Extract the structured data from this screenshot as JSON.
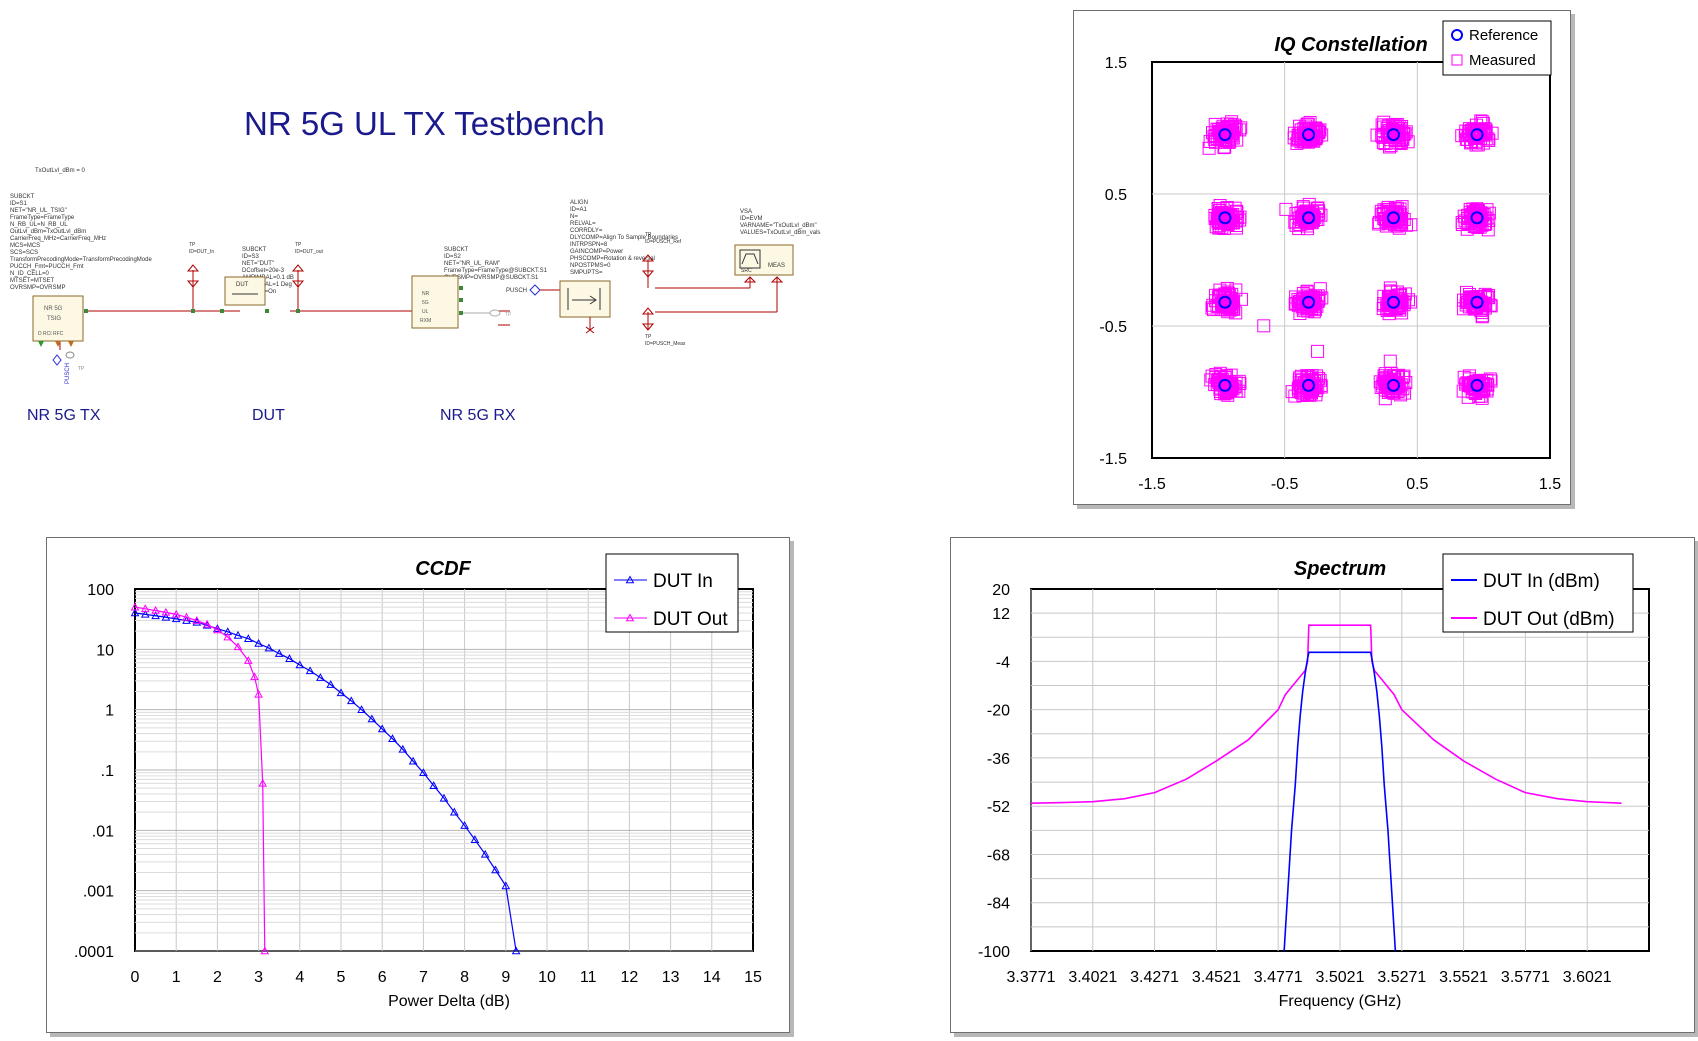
{
  "schematic": {
    "title": "NR 5G UL TX Testbench",
    "var_line": "TxOutLvl_dBm = 0",
    "blocks": [
      {
        "label": "NR 5G TX",
        "params": [
          "SUBCKT",
          "ID=S1",
          "NET=\"NR_UL_TSIG\"",
          "FrameType=FrameType",
          "N_RB_UL=N_RB_UL",
          "OutLvl_dBm=TxOutLvl_dBm",
          "CarrierFreq_MHz=CarrierFreq_MHz",
          "MCS=MCS",
          "SCS=SCS",
          "TransformPrecodingMode=TransformPrecodingMode",
          "PUCCH_Fmt=PUCCH_Fmt",
          "N_ID_CELL=0",
          "MTSET=MTSET",
          "OVRSMP=OVRSMP"
        ],
        "ports": [
          "NR",
          "5G",
          "TSIG",
          "D",
          "RCI",
          "RFC"
        ]
      },
      {
        "label": "DUT",
        "params": [
          "SUBCKT",
          "ID=S3",
          "NET=\"DUT\"",
          "DCoffset=20e-3",
          "AMPIMBAL=0.1 dB",
          "PHAIMBAL=1 Deg",
          "PhNoise=On"
        ]
      },
      {
        "label": "NR 5G RX",
        "params": [
          "SUBCKT",
          "ID=S2",
          "NET=\"NR_UL_RAM\"",
          "FrameType=FrameType@SUBCKT.S1",
          "OVRSMP=OVRSMP@SUBCKT.S1"
        ],
        "ports": [
          "NR",
          "5G",
          "UL",
          "RXM"
        ]
      }
    ],
    "align_params": [
      "ALIGN",
      "ID=A1",
      "N=",
      "RELVAL=",
      "CORRDLY=",
      "DLYCOMP=Align To Sample Boundaries",
      "INTRPSPN=8",
      "GAINCOMP=Power",
      "PHSCOMP=Rotation & reversal",
      "NPOSTPMS=0",
      "SMPUPTS="
    ],
    "vsa_params": [
      "VSA",
      "ID=EVM",
      "VARNAME=\"TxOutLvl_dBm\"",
      "VALUES=TxOutLvl_dBm_vals"
    ],
    "vsa_box": [
      "SRC",
      "MEAS"
    ],
    "testpoints": [
      "TP\nID=DUT_In",
      "TP\nID=DUT_out",
      "TP\nID=PUSCH_Ref",
      "TP\nID=PUSCH_Meas",
      "TP\nID=PUCCH_Meas",
      "TP\nID=PUSCH_Ref"
    ],
    "pusch_label": "PUSCH",
    "pusch_port": "PUSCH"
  },
  "chart_data": [
    {
      "type": "scatter",
      "title": "IQ Constellation",
      "xlim": [
        -1.5,
        1.5
      ],
      "ylim": [
        -1.5,
        1.5
      ],
      "xticks": [
        "-1.5",
        "-0.5",
        "0.5",
        "1.5"
      ],
      "yticks": [
        "1.5",
        "0.5",
        "-0.5",
        "-1.5"
      ],
      "grid": true,
      "legend_position": "top-right",
      "series": [
        {
          "name": "Reference",
          "color": "#0000ff",
          "marker": "circle",
          "points": [
            [
              -0.95,
              0.95
            ],
            [
              -0.32,
              0.95
            ],
            [
              0.32,
              0.95
            ],
            [
              0.95,
              0.95
            ],
            [
              -0.95,
              0.32
            ],
            [
              -0.32,
              0.32
            ],
            [
              0.32,
              0.32
            ],
            [
              0.95,
              0.32
            ],
            [
              -0.95,
              -0.32
            ],
            [
              -0.32,
              -0.32
            ],
            [
              0.32,
              -0.32
            ],
            [
              0.95,
              -0.32
            ],
            [
              -0.95,
              -0.95
            ],
            [
              -0.32,
              -0.95
            ],
            [
              0.32,
              -0.95
            ],
            [
              0.95,
              -0.95
            ]
          ]
        },
        {
          "name": "Measured",
          "color": "#ff00ff",
          "marker": "square",
          "cluster_centers": [
            [
              -0.95,
              0.95
            ],
            [
              -0.32,
              0.95
            ],
            [
              0.32,
              0.95
            ],
            [
              0.95,
              0.95
            ],
            [
              -0.95,
              0.32
            ],
            [
              -0.32,
              0.32
            ],
            [
              0.32,
              0.32
            ],
            [
              0.95,
              0.32
            ],
            [
              -0.95,
              -0.32
            ],
            [
              -0.32,
              -0.32
            ],
            [
              0.32,
              -0.32
            ],
            [
              0.95,
              -0.32
            ],
            [
              -0.95,
              -0.95
            ],
            [
              -0.32,
              -0.95
            ],
            [
              0.32,
              -0.95
            ],
            [
              0.95,
              -0.95
            ]
          ],
          "spread": 0.12
        }
      ]
    },
    {
      "type": "line",
      "title": "CCDF",
      "xlabel": "Power Delta (dB)",
      "xlim": [
        0,
        15
      ],
      "ylim": [
        0.0001,
        100
      ],
      "yscale": "log",
      "xticks": [
        "0",
        "1",
        "2",
        "3",
        "4",
        "5",
        "6",
        "7",
        "8",
        "9",
        "10",
        "11",
        "12",
        "13",
        "14",
        "15"
      ],
      "yticks": [
        "100",
        "10",
        "1",
        ".1",
        ".01",
        ".001",
        ".0001"
      ],
      "grid": true,
      "legend_position": "top-right",
      "series": [
        {
          "name": "DUT In",
          "color": "#0000ff",
          "marker": "triangle",
          "x": [
            0,
            0.25,
            0.5,
            0.75,
            1,
            1.25,
            1.5,
            1.75,
            2,
            2.25,
            2.5,
            2.75,
            3,
            3.25,
            3.5,
            3.75,
            4,
            4.25,
            4.5,
            4.75,
            5,
            5.25,
            5.5,
            5.75,
            6,
            6.25,
            6.5,
            6.75,
            7,
            7.25,
            7.5,
            7.75,
            8,
            8.25,
            8.5,
            8.75,
            9,
            9.25
          ],
          "y": [
            40,
            38,
            36,
            34,
            32,
            30,
            28,
            25,
            22,
            19.5,
            17,
            15,
            12.5,
            10.5,
            8.5,
            7,
            5.5,
            4.4,
            3.4,
            2.6,
            1.9,
            1.4,
            1.0,
            0.7,
            0.48,
            0.33,
            0.22,
            0.14,
            0.09,
            0.055,
            0.034,
            0.02,
            0.012,
            0.007,
            0.004,
            0.0022,
            0.0012,
            0.0001
          ]
        },
        {
          "name": "DUT Out",
          "color": "#ff00ff",
          "marker": "triangle",
          "x": [
            0,
            0.25,
            0.5,
            0.75,
            1,
            1.25,
            1.5,
            1.75,
            2,
            2.25,
            2.5,
            2.75,
            2.9,
            3.0,
            3.1,
            3.15
          ],
          "y": [
            50,
            47,
            44,
            41,
            38,
            34,
            30,
            26,
            21,
            16,
            11,
            6.5,
            3.5,
            1.8,
            0.06,
            0.0001
          ]
        }
      ]
    },
    {
      "type": "line",
      "title": "Spectrum",
      "xlabel": "Frequency (GHz)",
      "xlim": [
        3.3771,
        3.6271
      ],
      "ylim": [
        -100,
        20
      ],
      "xticks": [
        "3.3771",
        "3.4021",
        "3.4271",
        "3.4521",
        "3.4771",
        "3.5021",
        "3.5271",
        "3.5521",
        "3.5771",
        "3.6021"
      ],
      "yticks": [
        "20",
        "12",
        "-4",
        "-20",
        "-36",
        "-52",
        "-68",
        "-84",
        "-100"
      ],
      "grid": true,
      "legend_position": "top-right",
      "series": [
        {
          "name": "DUT In (dBm)",
          "color": "#0000ff",
          "x": [
            3.4795,
            3.481,
            3.4825,
            3.484,
            3.485,
            3.486,
            3.487,
            3.488,
            3.489,
            3.4895,
            3.5145,
            3.515,
            3.516,
            3.517,
            3.518,
            3.519,
            3.52,
            3.5215,
            3.523,
            3.5245
          ],
          "y": [
            -100,
            -80,
            -60,
            -45,
            -32,
            -22,
            -14,
            -8,
            -3,
            -1,
            -1,
            -3,
            -8,
            -14,
            -22,
            -32,
            -45,
            -60,
            -80,
            -100
          ]
        },
        {
          "name": "DUT Out (dBm)",
          "color": "#ff00ff",
          "x": [
            3.3771,
            3.39,
            3.4021,
            3.415,
            3.4271,
            3.44,
            3.4521,
            3.465,
            3.4771,
            3.48,
            3.485,
            3.488,
            3.489,
            3.4895,
            3.5145,
            3.515,
            3.516,
            3.519,
            3.524,
            3.5271,
            3.54,
            3.5521,
            3.565,
            3.5771,
            3.59,
            3.6021,
            3.616
          ],
          "y": [
            -51,
            -50.8,
            -50.5,
            -49.5,
            -47.5,
            -43,
            -37,
            -30,
            -20,
            -15,
            -10,
            -7,
            -4,
            8,
            8,
            -4,
            -7,
            -10,
            -15,
            -20,
            -30,
            -37,
            -43,
            -47.5,
            -49.5,
            -50.5,
            -51
          ]
        }
      ]
    }
  ]
}
